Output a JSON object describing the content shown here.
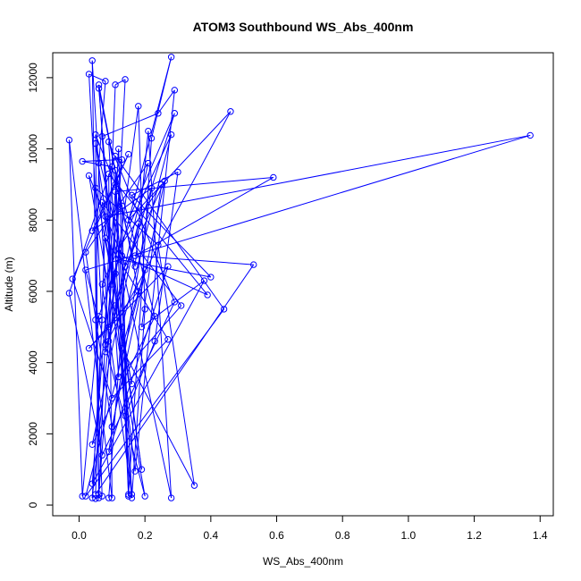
{
  "chart_data": {
    "type": "line",
    "title": "ATOM3 Southbound WS_Abs_400nm",
    "xlabel": "WS_Abs_400nm",
    "ylabel": "Altitude (m)",
    "xlim": [
      -0.08,
      1.44
    ],
    "ylim": [
      -300,
      12700
    ],
    "x_ticks": [
      "0.0",
      "0.2",
      "0.4",
      "0.6",
      "0.8",
      "1.0",
      "1.2",
      "1.4"
    ],
    "x_tick_values": [
      0.0,
      0.2,
      0.4,
      0.6,
      0.8,
      1.0,
      1.2,
      1.4
    ],
    "y_ticks": [
      "0",
      "2000",
      "4000",
      "6000",
      "8000",
      "10000",
      "12000"
    ],
    "y_tick_values": [
      0,
      2000,
      4000,
      6000,
      8000,
      10000,
      12000
    ],
    "grid": false,
    "marker": "open-circle",
    "series": [
      {
        "color": "#0000ff",
        "points": [
          {
            "x": 0.05,
            "y": 180
          },
          {
            "x": 0.07,
            "y": 250
          },
          {
            "x": 0.05,
            "y": 5200
          },
          {
            "x": 0.06,
            "y": 9600
          },
          {
            "x": 0.08,
            "y": 11900
          },
          {
            "x": 0.03,
            "y": 12100
          },
          {
            "x": 0.07,
            "y": 5200
          },
          {
            "x": 0.04,
            "y": 200
          },
          {
            "x": 0.09,
            "y": 4600
          },
          {
            "x": 0.04,
            "y": 12480
          },
          {
            "x": 0.06,
            "y": 200
          },
          {
            "x": 0.11,
            "y": 11800
          },
          {
            "x": 0.14,
            "y": 11950
          },
          {
            "x": 0.11,
            "y": 6500
          },
          {
            "x": 0.06,
            "y": 300
          },
          {
            "x": 0.05,
            "y": 10400
          },
          {
            "x": 0.11,
            "y": 9000
          },
          {
            "x": 0.15,
            "y": 250
          },
          {
            "x": 0.12,
            "y": 10000
          },
          {
            "x": 0.09,
            "y": 5000
          },
          {
            "x": 0.18,
            "y": 11200
          },
          {
            "x": 0.2,
            "y": 5500
          },
          {
            "x": 0.16,
            "y": 200
          },
          {
            "x": 0.06,
            "y": 11700
          },
          {
            "x": 0.13,
            "y": 8400
          },
          {
            "x": 0.15,
            "y": 300
          },
          {
            "x": 0.22,
            "y": 10300
          },
          {
            "x": 0.28,
            "y": 12580
          },
          {
            "x": 0.1,
            "y": 6200
          },
          {
            "x": 0.07,
            "y": 10350
          },
          {
            "x": 0.24,
            "y": 11000
          },
          {
            "x": 0.29,
            "y": 11650
          },
          {
            "x": 0.17,
            "y": 950
          },
          {
            "x": 0.11,
            "y": 5600
          },
          {
            "x": 0.29,
            "y": 11000
          },
          {
            "x": 0.15,
            "y": 8000
          },
          {
            "x": 0.46,
            "y": 11050
          },
          {
            "x": 0.08,
            "y": 4500
          },
          {
            "x": 0.13,
            "y": 9700
          },
          {
            "x": 0.01,
            "y": 9650
          },
          {
            "x": 0.1,
            "y": 9500
          },
          {
            "x": 0.17,
            "y": 6700
          },
          {
            "x": 0.21,
            "y": 10500
          },
          {
            "x": 0.28,
            "y": 200
          },
          {
            "x": 0.12,
            "y": 7200
          },
          {
            "x": 0.25,
            "y": 9000
          },
          {
            "x": 0.19,
            "y": 5000
          },
          {
            "x": 0.38,
            "y": 6300
          },
          {
            "x": 0.04,
            "y": 600
          },
          {
            "x": 0.11,
            "y": 8800
          },
          {
            "x": 0.59,
            "y": 9200
          },
          {
            "x": 0.17,
            "y": 7000
          },
          {
            "x": 0.53,
            "y": 6750
          },
          {
            "x": 0.05,
            "y": 300
          },
          {
            "x": 0.08,
            "y": 8100
          },
          {
            "x": 1.37,
            "y": 10380
          },
          {
            "x": 0.02,
            "y": 6600
          },
          {
            "x": 0.2,
            "y": 250
          },
          {
            "x": 0.03,
            "y": 9250
          },
          {
            "x": 0.13,
            "y": 7000
          },
          {
            "x": 0.39,
            "y": 5900
          },
          {
            "x": 0.09,
            "y": 9300
          },
          {
            "x": 0.1,
            "y": 200
          },
          {
            "x": -0.03,
            "y": 10250
          },
          {
            "x": 0.01,
            "y": 250
          },
          {
            "x": 0.06,
            "y": 5300
          },
          {
            "x": 0.12,
            "y": 6900
          },
          {
            "x": 0.4,
            "y": 6400
          },
          {
            "x": 0.16,
            "y": 8700
          },
          {
            "x": 0.3,
            "y": 9350
          },
          {
            "x": 0.23,
            "y": 4600
          },
          {
            "x": 0.14,
            "y": 2500
          },
          {
            "x": 0.09,
            "y": 10200
          },
          {
            "x": 0.29,
            "y": 5700
          },
          {
            "x": 0.07,
            "y": 1400
          },
          {
            "x": -0.03,
            "y": 5950
          },
          {
            "x": 0.11,
            "y": 9800
          },
          {
            "x": 0.44,
            "y": 5500
          },
          {
            "x": 0.02,
            "y": 250
          },
          {
            "x": 0.2,
            "y": 6600
          },
          {
            "x": 0.13,
            "y": 4400
          },
          {
            "x": 0.35,
            "y": 550
          },
          {
            "x": 0.24,
            "y": 7300
          },
          {
            "x": 0.05,
            "y": 8900
          },
          {
            "x": 0.16,
            "y": 3400
          },
          {
            "x": 0.08,
            "y": 7500
          },
          {
            "x": 0.27,
            "y": 4650
          },
          {
            "x": 0.1,
            "y": 3000
          },
          {
            "x": -0.02,
            "y": 6350
          },
          {
            "x": 0.15,
            "y": 9850
          },
          {
            "x": 0.04,
            "y": 7700
          },
          {
            "x": 0.22,
            "y": 8900
          },
          {
            "x": 0.09,
            "y": 1500
          },
          {
            "x": 0.27,
            "y": 6700
          },
          {
            "x": 0.03,
            "y": 4400
          },
          {
            "x": 0.18,
            "y": 6000
          },
          {
            "x": 0.06,
            "y": 11800
          },
          {
            "x": 0.12,
            "y": 3600
          },
          {
            "x": 0.31,
            "y": 5600
          },
          {
            "x": 0.07,
            "y": 8500
          },
          {
            "x": 0.19,
            "y": 1000
          },
          {
            "x": 0.05,
            "y": 10150
          },
          {
            "x": 0.14,
            "y": 6700
          },
          {
            "x": 0.26,
            "y": 9100
          },
          {
            "x": 0.1,
            "y": 2200
          },
          {
            "x": 0.02,
            "y": 7100
          },
          {
            "x": 0.21,
            "y": 9600
          },
          {
            "x": 0.08,
            "y": 4300
          },
          {
            "x": 0.18,
            "y": 7900
          },
          {
            "x": 0.04,
            "y": 1700
          },
          {
            "x": 0.23,
            "y": 5300
          },
          {
            "x": 0.11,
            "y": 9400
          },
          {
            "x": 0.16,
            "y": 300
          },
          {
            "x": 0.07,
            "y": 6200
          },
          {
            "x": 0.28,
            "y": 10400
          },
          {
            "x": 0.13,
            "y": 5000
          },
          {
            "x": 0.09,
            "y": 200
          }
        ]
      }
    ]
  }
}
